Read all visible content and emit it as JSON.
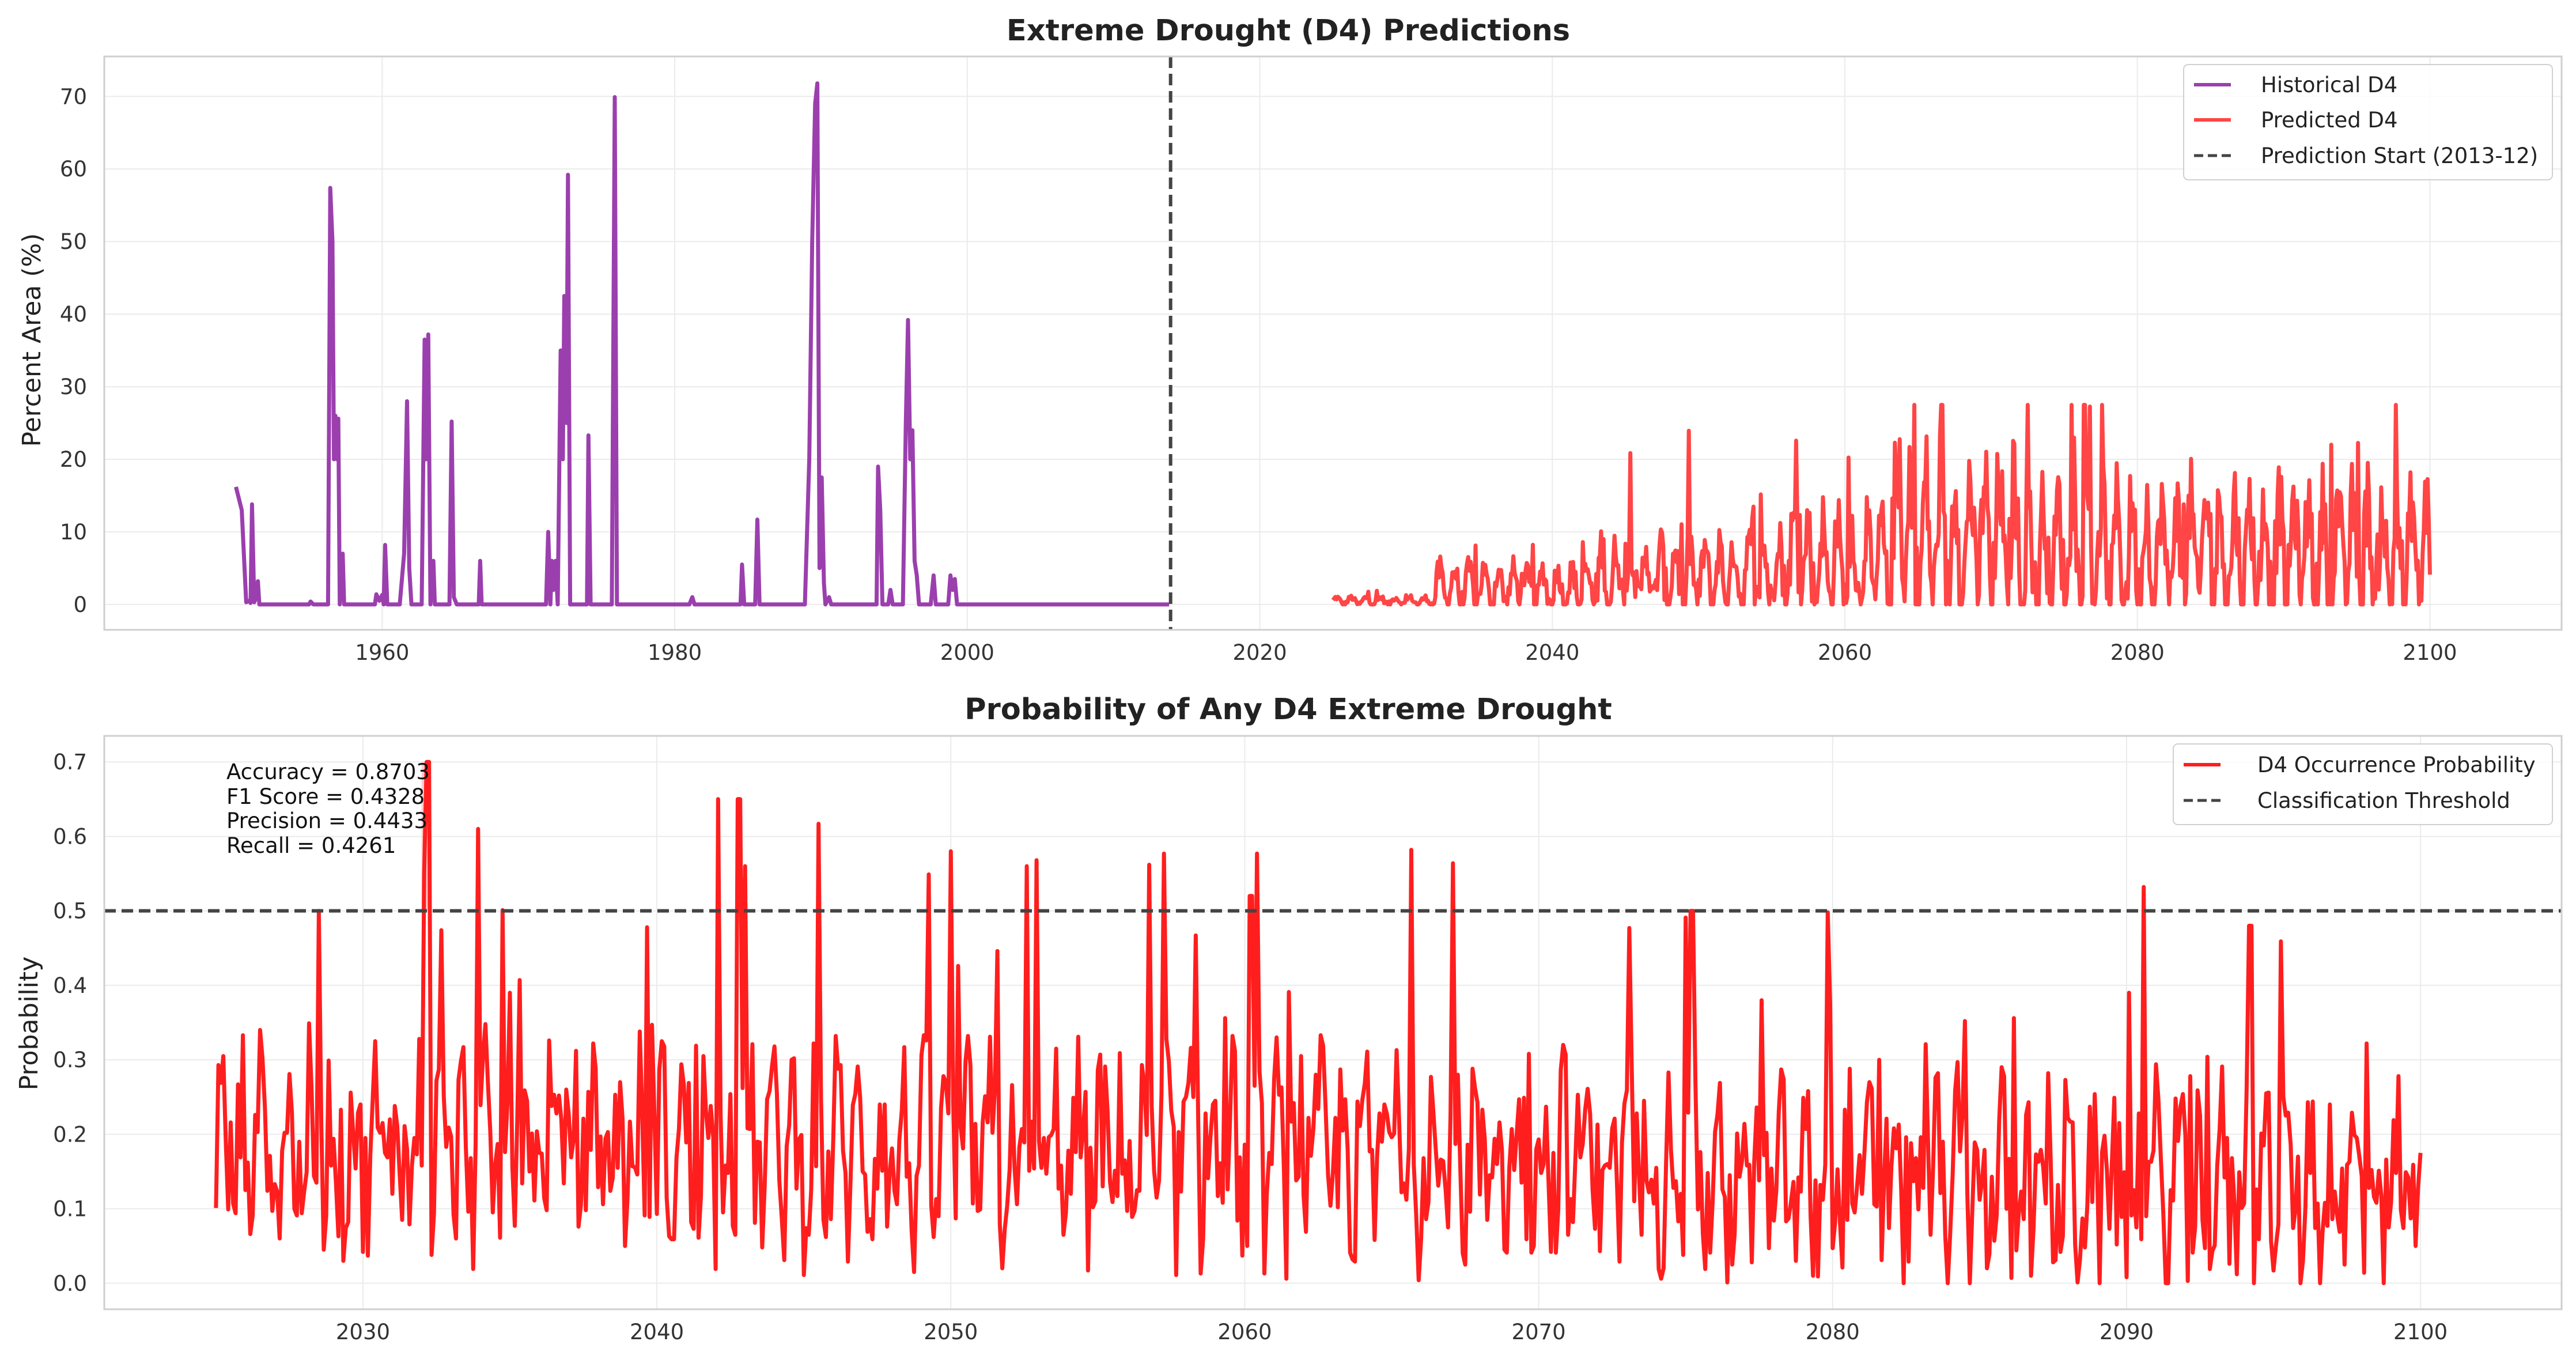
{
  "chart_data": [
    {
      "type": "line",
      "title": "Extreme Drought (D4) Predictions",
      "xlabel": "",
      "ylabel": "Percent Area (%)",
      "xlim": [
        1941,
        2109
      ],
      "ylim": [
        -3.5,
        75.5
      ],
      "x_ticks": [
        1960,
        1980,
        2000,
        2020,
        2040,
        2060,
        2080,
        2100
      ],
      "y_ticks": [
        0,
        10,
        20,
        30,
        40,
        50,
        60,
        70
      ],
      "grid": true,
      "legend_position": "top-right",
      "vline": {
        "x": 2013.9,
        "style": "dashed",
        "color": "#444444"
      },
      "series": [
        {
          "name": "Historical D4",
          "color": "#9b3fae",
          "points": [
            [
              1950.0,
              16.2
            ],
            [
              1950.4,
              13
            ],
            [
              1950.7,
              0.3
            ],
            [
              1950.9,
              0.5
            ],
            [
              1951.0,
              0.2
            ],
            [
              1951.1,
              13.8
            ],
            [
              1951.25,
              0.3
            ],
            [
              1951.4,
              1.0
            ],
            [
              1951.5,
              3.2
            ],
            [
              1951.6,
              0
            ],
            [
              1955.0,
              0
            ],
            [
              1955.1,
              0.4
            ],
            [
              1955.3,
              0
            ],
            [
              1956.3,
              0
            ],
            [
              1956.45,
              57.4
            ],
            [
              1956.6,
              50
            ],
            [
              1956.7,
              20
            ],
            [
              1956.8,
              26
            ],
            [
              1956.9,
              20
            ],
            [
              1957.0,
              25.6
            ],
            [
              1957.1,
              0
            ],
            [
              1957.3,
              7
            ],
            [
              1957.4,
              0
            ],
            [
              1959.5,
              0
            ],
            [
              1959.6,
              1.4
            ],
            [
              1959.8,
              0.5
            ],
            [
              1960.0,
              1.3
            ],
            [
              1960.1,
              0
            ],
            [
              1960.2,
              8.2
            ],
            [
              1960.35,
              0
            ],
            [
              1961.2,
              0
            ],
            [
              1961.5,
              7
            ],
            [
              1961.7,
              28
            ],
            [
              1961.85,
              5
            ],
            [
              1962.0,
              0
            ],
            [
              1962.7,
              0
            ],
            [
              1962.9,
              36.5
            ],
            [
              1963.0,
              20
            ],
            [
              1963.15,
              37.2
            ],
            [
              1963.3,
              0
            ],
            [
              1963.5,
              6
            ],
            [
              1963.6,
              0
            ],
            [
              1964.6,
              0
            ],
            [
              1964.75,
              25.2
            ],
            [
              1964.9,
              1
            ],
            [
              1965.1,
              0
            ],
            [
              1966.6,
              0
            ],
            [
              1966.7,
              6
            ],
            [
              1966.8,
              0
            ],
            [
              1971.2,
              0
            ],
            [
              1971.35,
              10
            ],
            [
              1971.5,
              0
            ],
            [
              1971.6,
              6
            ],
            [
              1971.7,
              2
            ],
            [
              1971.85,
              6
            ],
            [
              1972.0,
              0
            ],
            [
              1972.2,
              35
            ],
            [
              1972.35,
              20
            ],
            [
              1972.45,
              42.5
            ],
            [
              1972.6,
              25
            ],
            [
              1972.7,
              59.2
            ],
            [
              1972.85,
              0
            ],
            [
              1974.0,
              0
            ],
            [
              1974.1,
              23.3
            ],
            [
              1974.25,
              0
            ],
            [
              1975.7,
              0
            ],
            [
              1975.9,
              69.9
            ],
            [
              1976.05,
              0
            ],
            [
              1981.0,
              0
            ],
            [
              1981.2,
              1
            ],
            [
              1981.35,
              0
            ],
            [
              1984.5,
              0
            ],
            [
              1984.6,
              5.5
            ],
            [
              1984.75,
              0
            ],
            [
              1985.5,
              0
            ],
            [
              1985.65,
              11.7
            ],
            [
              1985.8,
              0
            ],
            [
              1988.9,
              0
            ],
            [
              1989.2,
              20
            ],
            [
              1989.4,
              50
            ],
            [
              1989.6,
              69
            ],
            [
              1989.75,
              71.8
            ],
            [
              1989.9,
              5
            ],
            [
              1990.05,
              17.5
            ],
            [
              1990.2,
              3
            ],
            [
              1990.3,
              0
            ],
            [
              1990.55,
              1
            ],
            [
              1990.7,
              0
            ],
            [
              1993.8,
              0
            ],
            [
              1993.9,
              19
            ],
            [
              1994.05,
              13
            ],
            [
              1994.2,
              0
            ],
            [
              1994.6,
              0
            ],
            [
              1994.75,
              2
            ],
            [
              1994.9,
              0
            ],
            [
              1995.6,
              0
            ],
            [
              1995.8,
              25
            ],
            [
              1995.95,
              39.2
            ],
            [
              1996.1,
              20
            ],
            [
              1996.25,
              24
            ],
            [
              1996.4,
              6
            ],
            [
              1996.55,
              4
            ],
            [
              1996.7,
              0
            ],
            [
              1997.5,
              0
            ],
            [
              1997.7,
              4
            ],
            [
              1997.85,
              0
            ],
            [
              1998.7,
              0
            ],
            [
              1998.85,
              4
            ],
            [
              1999.0,
              2
            ],
            [
              1999.15,
              3.5
            ],
            [
              1999.3,
              0
            ],
            [
              2013.8,
              0
            ]
          ]
        },
        {
          "name": "Predicted D4",
          "color": "#ff4545",
          "points": []
        }
      ],
      "legend": [
        "Historical D4",
        "Predicted D4",
        "Prediction Start (2013-12)"
      ]
    },
    {
      "type": "line",
      "title": "Probability of Any D4 Extreme Drought",
      "xlabel": "",
      "ylabel": "Probability",
      "xlim": [
        2021.2,
        2104.8
      ],
      "ylim": [
        -0.035,
        0.735
      ],
      "x_ticks": [
        2030,
        2040,
        2050,
        2060,
        2070,
        2080,
        2090,
        2100
      ],
      "y_ticks": [
        0.0,
        0.1,
        0.2,
        0.3,
        0.4,
        0.5,
        0.6,
        0.7
      ],
      "grid": true,
      "legend_position": "top-right",
      "hline": {
        "y": 0.5,
        "style": "dashed",
        "color": "#444444"
      },
      "series": [
        {
          "name": "D4 Occurrence Probability",
          "color": "#ff1e1e",
          "points": []
        }
      ],
      "legend": [
        "D4 Occurrence Probability",
        "Classification Threshold"
      ],
      "annotations": [
        "Accuracy = 0.8703",
        "F1 Score = 0.4328",
        "Precision = 0.4433",
        "Recall = 0.4261"
      ]
    }
  ]
}
